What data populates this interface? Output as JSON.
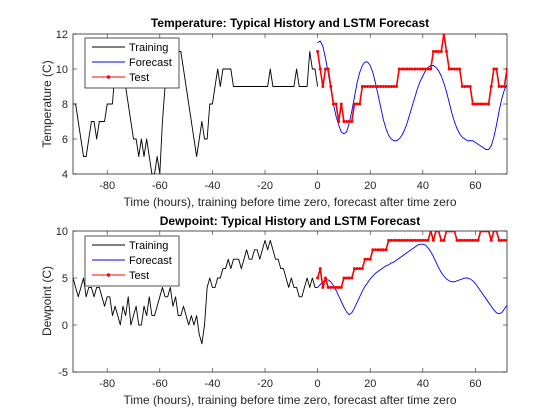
{
  "chart_data": [
    {
      "type": "line",
      "title": "Temperature: Typical History and LSTM Forecast",
      "xlabel": "Time (hours), training before time zero, forecast after time zero",
      "ylabel": "Temperature (C)",
      "xlim": [
        -93,
        72
      ],
      "ylim": [
        4,
        12
      ],
      "xticks": [
        -80,
        -60,
        -40,
        -20,
        0,
        20,
        40,
        60
      ],
      "yticks": [
        4,
        6,
        8,
        10,
        12
      ],
      "grid": false,
      "legend_position": "top-left",
      "series": [
        {
          "name": "Training",
          "color": "#000000",
          "marker": "none",
          "x": [
            -93,
            -92,
            -91,
            -90,
            -89,
            -88,
            -87,
            -86,
            -85,
            -84,
            -83,
            -82,
            -81,
            -80,
            -79,
            -78,
            -77,
            -76,
            -75,
            -74,
            -73,
            -72,
            -71,
            -70,
            -69,
            -68,
            -67,
            -66,
            -65,
            -64,
            -63,
            -62,
            -61,
            -60,
            -59,
            -58,
            -57,
            -56,
            -55,
            -54,
            -53,
            -52,
            -51,
            -50,
            -49,
            -48,
            -47,
            -46,
            -45,
            -44,
            -43,
            -42,
            -41,
            -40,
            -39,
            -38,
            -37,
            -36,
            -35,
            -34,
            -33,
            -32,
            -31,
            -30,
            -29,
            -28,
            -27,
            -26,
            -25,
            -24,
            -23,
            -22,
            -21,
            -20,
            -19,
            -18,
            -17,
            -16,
            -15,
            -14,
            -13,
            -12,
            -11,
            -10,
            -9,
            -8,
            -7,
            -6,
            -5,
            -4,
            -3,
            -2,
            -1,
            0
          ],
          "y": [
            8,
            8,
            7,
            6,
            5,
            5,
            6,
            7,
            7,
            6,
            7,
            7,
            7,
            8,
            8,
            8,
            10,
            10,
            10,
            10,
            9,
            8,
            7,
            6,
            6,
            5,
            6,
            5,
            6,
            5,
            4,
            4,
            5,
            4,
            7,
            9,
            10,
            11,
            11,
            10,
            11,
            11,
            10,
            9,
            8,
            7,
            6,
            5,
            6,
            7,
            6,
            6,
            8,
            8,
            9,
            10,
            9,
            10,
            10,
            10,
            10,
            9,
            9,
            9,
            9,
            9,
            9,
            9,
            9,
            9,
            9,
            9,
            9,
            9,
            9,
            10,
            9,
            9,
            9,
            9,
            9,
            9,
            9,
            9,
            9,
            10,
            9,
            9,
            9,
            9,
            11,
            10,
            10,
            9
          ]
        },
        {
          "name": "Forecast",
          "color": "#0000ff",
          "marker": "none",
          "x": [
            0,
            1,
            2,
            3,
            4,
            5,
            6,
            7,
            8,
            9,
            10,
            11,
            12,
            13,
            14,
            15,
            16,
            17,
            18,
            19,
            20,
            21,
            22,
            23,
            24,
            25,
            26,
            27,
            28,
            29,
            30,
            31,
            32,
            33,
            34,
            35,
            36,
            37,
            38,
            39,
            40,
            41,
            42,
            43,
            44,
            45,
            46,
            47,
            48,
            49,
            50,
            51,
            52,
            53,
            54,
            55,
            56,
            57,
            58,
            59,
            60,
            61,
            62,
            63,
            64,
            65,
            66,
            67,
            68,
            69,
            70,
            71,
            72
          ],
          "y": [
            11.5,
            11.6,
            11.3,
            10.6,
            9.8,
            8.9,
            8.0,
            7.3,
            6.8,
            6.4,
            6.3,
            6.4,
            6.9,
            7.6,
            8.4,
            9.2,
            9.8,
            10.2,
            10.4,
            10.4,
            10.2,
            9.8,
            9.2,
            8.5,
            7.8,
            7.1,
            6.6,
            6.2,
            6.0,
            5.9,
            5.9,
            6.0,
            6.2,
            6.5,
            6.9,
            7.4,
            7.9,
            8.4,
            8.9,
            9.3,
            9.6,
            9.9,
            10.1,
            10.2,
            10.2,
            10.1,
            9.9,
            9.6,
            9.2,
            8.7,
            8.1,
            7.5,
            7.0,
            6.6,
            6.3,
            6.1,
            6.0,
            5.9,
            5.9,
            5.9,
            5.8,
            5.7,
            5.6,
            5.5,
            5.4,
            5.4,
            5.6,
            6.1,
            6.8,
            7.6,
            8.3,
            8.8,
            9.1
          ]
        },
        {
          "name": "Test",
          "color": "#ff0000",
          "marker": "dot",
          "x": [
            0,
            1,
            2,
            3,
            4,
            5,
            6,
            7,
            8,
            9,
            10,
            11,
            12,
            13,
            14,
            15,
            16,
            17,
            18,
            19,
            20,
            21,
            22,
            23,
            24,
            25,
            26,
            27,
            28,
            29,
            30,
            31,
            32,
            33,
            34,
            35,
            36,
            37,
            38,
            39,
            40,
            41,
            42,
            43,
            44,
            45,
            46,
            47,
            48,
            49,
            50,
            51,
            52,
            53,
            54,
            55,
            56,
            57,
            58,
            59,
            60,
            61,
            62,
            63,
            64,
            65,
            66,
            67,
            68,
            69,
            70,
            71,
            72
          ],
          "y": [
            11,
            10,
            9,
            10,
            10,
            9,
            8,
            8,
            7,
            8,
            7,
            7,
            7,
            7,
            8,
            8,
            8,
            9,
            9,
            9,
            9,
            9,
            9,
            9,
            9,
            9,
            9,
            9,
            9,
            9,
            9,
            10,
            10,
            10,
            10,
            10,
            10,
            10,
            10,
            10,
            10,
            10,
            10,
            10,
            11,
            11,
            11,
            11,
            12,
            11,
            10,
            10,
            10,
            10,
            10,
            9,
            9,
            9,
            9,
            8,
            8,
            8,
            8,
            8,
            8,
            8,
            9,
            10,
            10,
            9,
            9,
            9,
            10
          ]
        }
      ]
    },
    {
      "type": "line",
      "title": "Dewpoint: Typical History and LSTM Forecast",
      "xlabel": "Time (hours), training before time zero, forecast after time zero",
      "ylabel": "Dewpoint (C)",
      "xlim": [
        -93,
        72
      ],
      "ylim": [
        -5,
        10
      ],
      "xticks": [
        -80,
        -60,
        -40,
        -20,
        0,
        20,
        40,
        60
      ],
      "yticks": [
        -5,
        0,
        5,
        10
      ],
      "grid": false,
      "legend_position": "top-left",
      "series": [
        {
          "name": "Training",
          "color": "#000000",
          "marker": "none",
          "x": [
            -93,
            -92,
            -91,
            -90,
            -89,
            -88,
            -87,
            -86,
            -85,
            -84,
            -83,
            -82,
            -81,
            -80,
            -79,
            -78,
            -77,
            -76,
            -75,
            -74,
            -73,
            -72,
            -71,
            -70,
            -69,
            -68,
            -67,
            -66,
            -65,
            -64,
            -63,
            -62,
            -61,
            -60,
            -59,
            -58,
            -57,
            -56,
            -55,
            -54,
            -53,
            -52,
            -51,
            -50,
            -49,
            -48,
            -47,
            -46,
            -45,
            -44,
            -43,
            -42,
            -41,
            -40,
            -39,
            -38,
            -37,
            -36,
            -35,
            -34,
            -33,
            -32,
            -31,
            -30,
            -29,
            -28,
            -27,
            -26,
            -25,
            -24,
            -23,
            -22,
            -21,
            -20,
            -19,
            -18,
            -17,
            -16,
            -15,
            -14,
            -13,
            -12,
            -11,
            -10,
            -9,
            -8,
            -7,
            -6,
            -5,
            -4,
            -3,
            -2,
            -1,
            0
          ],
          "y": [
            5,
            4,
            3,
            4,
            5,
            3,
            4,
            4,
            3,
            4,
            4,
            3,
            2,
            3,
            3,
            1,
            2,
            1,
            0,
            2,
            1,
            3,
            0,
            1,
            2,
            0,
            0,
            2,
            1,
            3,
            1,
            1,
            2,
            3,
            4,
            3,
            3,
            4,
            2,
            3,
            1,
            1,
            2,
            1,
            0,
            1,
            0,
            1,
            -1,
            -2,
            0,
            4,
            5,
            4,
            4,
            5,
            5,
            6,
            6,
            7,
            6,
            7,
            7,
            7,
            6,
            7,
            8,
            7,
            7,
            8,
            8,
            7,
            8,
            9,
            8,
            9,
            8,
            7,
            7,
            6,
            6,
            5,
            4,
            5,
            4,
            4,
            3,
            3,
            4,
            5,
            4,
            5,
            4,
            4
          ]
        },
        {
          "name": "Forecast",
          "color": "#0000ff",
          "marker": "none",
          "x": [
            0,
            1,
            2,
            3,
            4,
            5,
            6,
            7,
            8,
            9,
            10,
            11,
            12,
            13,
            14,
            15,
            16,
            17,
            18,
            19,
            20,
            21,
            22,
            23,
            24,
            25,
            26,
            27,
            28,
            29,
            30,
            31,
            32,
            33,
            34,
            35,
            36,
            37,
            38,
            39,
            40,
            41,
            42,
            43,
            44,
            45,
            46,
            47,
            48,
            49,
            50,
            51,
            52,
            53,
            54,
            55,
            56,
            57,
            58,
            59,
            60,
            61,
            62,
            63,
            64,
            65,
            66,
            67,
            68,
            69,
            70,
            71,
            72
          ],
          "y": [
            4.0,
            4.3,
            4.6,
            4.8,
            4.8,
            4.6,
            4.2,
            3.7,
            3.1,
            2.5,
            1.9,
            1.4,
            1.1,
            1.3,
            1.8,
            2.4,
            3.0,
            3.6,
            4.1,
            4.5,
            4.9,
            5.2,
            5.5,
            5.7,
            5.9,
            6.1,
            6.3,
            6.4,
            6.6,
            6.7,
            6.9,
            7.1,
            7.3,
            7.5,
            7.7,
            7.9,
            8.1,
            8.3,
            8.5,
            8.6,
            8.6,
            8.5,
            8.2,
            7.8,
            7.3,
            6.7,
            6.1,
            5.6,
            5.2,
            4.9,
            4.7,
            4.6,
            4.6,
            4.7,
            4.8,
            4.9,
            5.0,
            5.0,
            4.9,
            4.7,
            4.4,
            4.0,
            3.6,
            3.2,
            2.8,
            2.4,
            2.0,
            1.6,
            1.3,
            1.2,
            1.3,
            1.7,
            2.1
          ]
        },
        {
          "name": "Test",
          "color": "#ff0000",
          "marker": "dot",
          "x": [
            0,
            1,
            2,
            3,
            4,
            5,
            6,
            7,
            8,
            9,
            10,
            11,
            12,
            13,
            14,
            15,
            16,
            17,
            18,
            19,
            20,
            21,
            22,
            23,
            24,
            25,
            26,
            27,
            28,
            29,
            30,
            31,
            32,
            33,
            34,
            35,
            36,
            37,
            38,
            39,
            40,
            41,
            42,
            43,
            44,
            45,
            46,
            47,
            48,
            49,
            50,
            51,
            52,
            53,
            54,
            55,
            56,
            57,
            58,
            59,
            60,
            61,
            62,
            63,
            64,
            65,
            66,
            67,
            68,
            69,
            70,
            71,
            72
          ],
          "y": [
            5,
            6,
            4,
            5,
            4,
            4,
            4,
            4,
            4,
            4,
            5,
            5,
            5,
            5,
            6,
            6,
            6,
            6,
            7,
            7,
            7,
            8,
            8,
            8,
            8,
            8,
            8,
            9,
            9,
            9,
            9,
            9,
            9,
            9,
            9,
            9,
            9,
            9,
            9,
            9,
            9,
            9,
            9,
            10,
            9,
            10,
            10,
            9,
            9,
            10,
            10,
            10,
            10,
            9,
            9,
            9,
            9,
            9,
            9,
            9,
            9,
            9,
            10,
            10,
            10,
            10,
            9,
            10,
            10,
            9,
            9,
            9,
            9
          ]
        }
      ]
    }
  ]
}
